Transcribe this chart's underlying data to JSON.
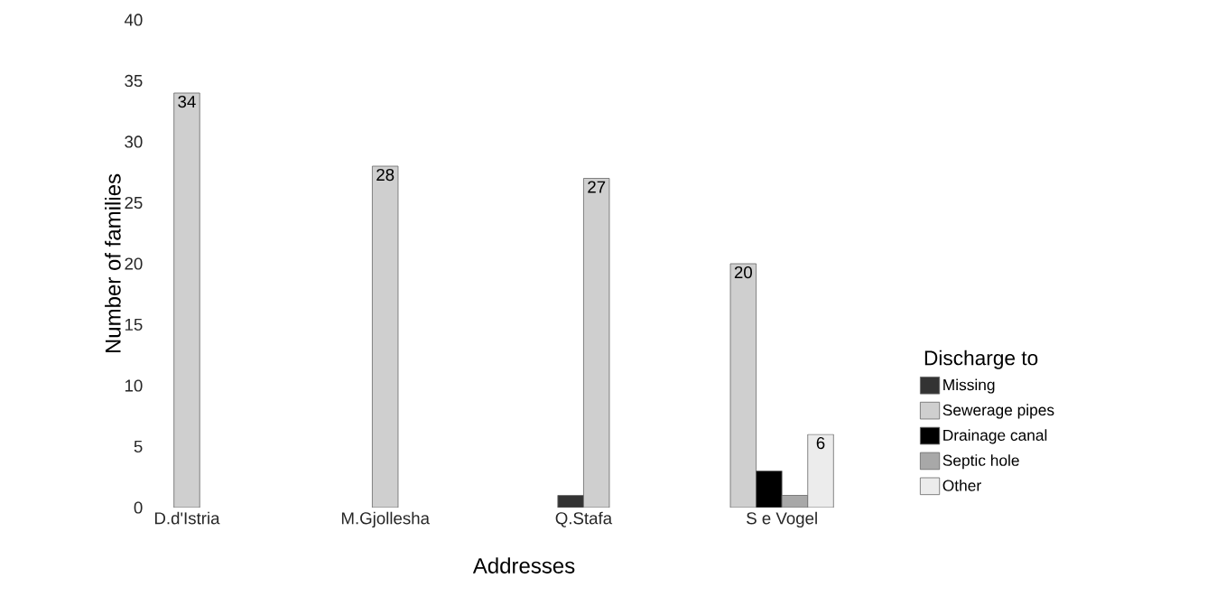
{
  "chart_data": {
    "type": "bar",
    "xlabel": "Addresses",
    "ylabel": "Number of families",
    "legend_title": "Discharge to",
    "legend": "right",
    "categories": [
      "D.d'Istria",
      "M.Gjollesha",
      "Q.Stafa",
      "S e Vogel"
    ],
    "series": [
      {
        "name": "Missing",
        "color": "#333333",
        "values": [
          null,
          null,
          1,
          null
        ],
        "value_labels": [
          null,
          null,
          null,
          null
        ]
      },
      {
        "name": "Sewerage pipes",
        "color": "#cfcfcf",
        "values": [
          34,
          28,
          27,
          20
        ],
        "value_labels": [
          "34",
          "28",
          "27",
          "20"
        ]
      },
      {
        "name": "Drainage canal",
        "color": "#000000",
        "values": [
          null,
          null,
          null,
          3
        ],
        "value_labels": [
          null,
          null,
          null,
          null
        ]
      },
      {
        "name": "Septic hole",
        "color": "#a8a8a8",
        "values": [
          null,
          null,
          null,
          1
        ],
        "value_labels": [
          null,
          null,
          null,
          null
        ]
      },
      {
        "name": "Other",
        "color": "#ececec",
        "values": [
          null,
          null,
          null,
          6
        ],
        "value_labels": [
          null,
          null,
          null,
          "6"
        ]
      }
    ],
    "ylim": [
      0,
      40
    ],
    "yticks": [
      0,
      5,
      10,
      15,
      20,
      25,
      30,
      35,
      40
    ],
    "grid": false
  }
}
